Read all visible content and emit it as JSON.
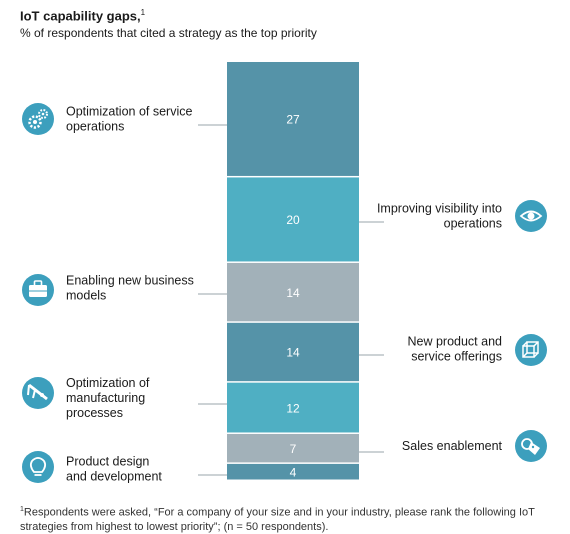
{
  "title": "IoT capability gaps,",
  "title_note": "1",
  "subtitle": "% of respondents that cited a strategy as the top priority",
  "footnote_mark": "1",
  "footnote": "Respondents were asked, “For a company of your size and in your industry, please rank the following IoT strategies from highest to lowest priority”; (n = 50 respondents).",
  "colors": {
    "dark_teal": "#5593a8",
    "bright_teal": "#4fafc3",
    "gray": "#a2b1b9",
    "icon": "#3c9fbd",
    "leader": "#9aa5ab"
  },
  "chart_data": {
    "type": "bar",
    "stacked": true,
    "categories": [
      "Optimization of service operations",
      "Improving visibility into operations",
      "Enabling new business models",
      "New product and service offerings",
      "Optimization of manufacturing processes",
      "Sales enablement",
      "Product design and development"
    ],
    "values": [
      27,
      20,
      14,
      14,
      12,
      7,
      4
    ],
    "segment_colors": [
      "#5593a8",
      "#4fafc3",
      "#a2b1b9",
      "#5593a8",
      "#4fafc3",
      "#a2b1b9",
      "#5593a8"
    ],
    "label_side": [
      "left",
      "right",
      "left",
      "right",
      "left",
      "right",
      "left"
    ],
    "label_lines": [
      [
        "Optimization of service",
        "operations"
      ],
      [
        "Improving visibility into",
        "operations"
      ],
      [
        "Enabling new business",
        "models"
      ],
      [
        "New product and",
        "service offerings"
      ],
      [
        "Optimization of",
        "manufacturing",
        "processes"
      ],
      [
        "Sales enablement"
      ],
      [
        "Product design",
        "and development"
      ]
    ],
    "icons": [
      "gears-icon",
      "eye-icon",
      "briefcase-icon",
      "cube-icon",
      "caliper-icon",
      "tag-icon",
      "lightbulb-icon"
    ]
  }
}
